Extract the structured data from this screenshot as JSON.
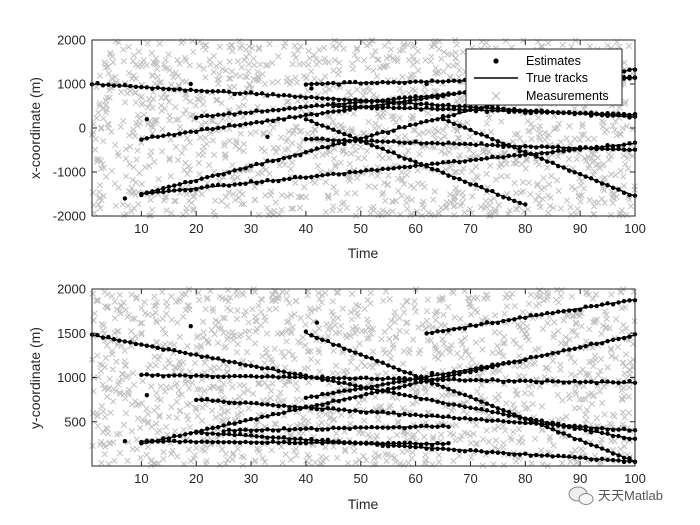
{
  "chart_data": [
    {
      "type": "scatter",
      "panel": "top",
      "xlabel": "Time",
      "ylabel": "x-coordinate (m)",
      "xlim": [
        1,
        100
      ],
      "ylim": [
        -2000,
        2000
      ],
      "xticks": [
        10,
        20,
        30,
        40,
        50,
        60,
        70,
        80,
        90,
        100
      ],
      "yticks": [
        -2000,
        -1000,
        0,
        1000,
        2000
      ],
      "tracks": [
        {
          "start": 1,
          "end": 100,
          "y0": 1000,
          "y1": 250
        },
        {
          "start": 10,
          "end": 100,
          "y0": -1500,
          "y1": -350
        },
        {
          "start": 10,
          "end": 100,
          "y0": -1500,
          "y1": 1350
        },
        {
          "start": 10,
          "end": 80,
          "y0": -250,
          "y1": 1000
        },
        {
          "start": 20,
          "end": 100,
          "y0": 250,
          "y1": 1150
        },
        {
          "start": 40,
          "end": 100,
          "y0": 1000,
          "y1": 1150
        },
        {
          "start": 40,
          "end": 80,
          "y0": 200,
          "y1": -1750
        },
        {
          "start": 40,
          "end": 100,
          "y0": -250,
          "y1": -500
        },
        {
          "start": 65,
          "end": 100,
          "y0": 200,
          "y1": -1550
        },
        {
          "start": 45,
          "end": 100,
          "y0": 500,
          "y1": 300
        }
      ],
      "outlier_estimates": [
        {
          "x": 7,
          "y": -1600
        },
        {
          "x": 11,
          "y": 200
        },
        {
          "x": 19,
          "y": 1000
        },
        {
          "x": 33,
          "y": -200
        },
        {
          "x": 41,
          "y": 900
        },
        {
          "x": 62,
          "y": 1000
        }
      ],
      "measurement_count": 1500,
      "legend": {
        "entries": [
          "Estimates",
          "True tracks",
          "Measurements"
        ],
        "location": "top-right"
      }
    },
    {
      "type": "scatter",
      "panel": "bottom",
      "xlabel": "Time",
      "ylabel": "y-coordinate (m)",
      "xlim": [
        1,
        100
      ],
      "ylim": [
        0,
        2000
      ],
      "xticks": [
        10,
        20,
        30,
        40,
        50,
        60,
        70,
        80,
        90,
        100
      ],
      "yticks": [
        500,
        1000,
        1500,
        2000
      ],
      "tracks": [
        {
          "start": 1,
          "end": 100,
          "y0": 1480,
          "y1": 300
        },
        {
          "start": 10,
          "end": 100,
          "y0": 1030,
          "y1": 940
        },
        {
          "start": 10,
          "end": 66,
          "y0": 280,
          "y1": 250
        },
        {
          "start": 10,
          "end": 100,
          "y0": 250,
          "y1": 1480
        },
        {
          "start": 20,
          "end": 100,
          "y0": 750,
          "y1": 400
        },
        {
          "start": 20,
          "end": 100,
          "y0": 380,
          "y1": 50
        },
        {
          "start": 40,
          "end": 100,
          "y0": 1500,
          "y1": 50
        },
        {
          "start": 40,
          "end": 80,
          "y0": 770,
          "y1": 1200
        },
        {
          "start": 62,
          "end": 100,
          "y0": 1500,
          "y1": 1880
        },
        {
          "start": 25,
          "end": 66,
          "y0": 400,
          "y1": 450
        }
      ],
      "outlier_estimates": [
        {
          "x": 7,
          "y": 280
        },
        {
          "x": 11,
          "y": 800
        },
        {
          "x": 19,
          "y": 1580
        },
        {
          "x": 42,
          "y": 1620
        },
        {
          "x": 63,
          "y": 1050
        }
      ],
      "measurement_count": 1500
    }
  ],
  "watermark": "天天Matlab"
}
